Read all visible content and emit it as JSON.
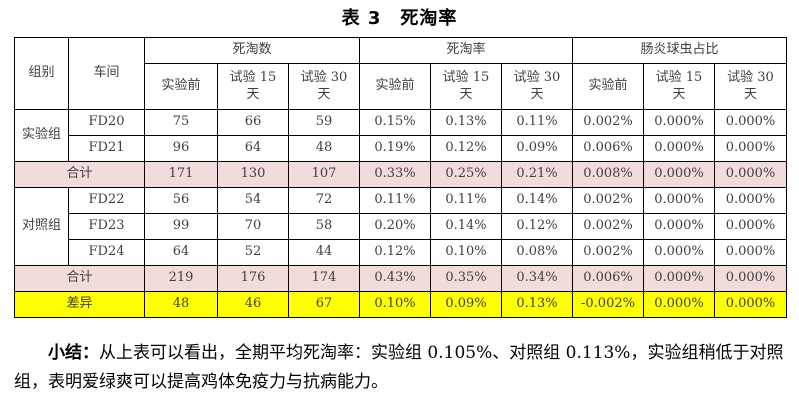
{
  "title": "表 3　死淘率",
  "colors": {
    "subtotal_row_bg": "#f2dcdb",
    "diff_row_bg": "#ffff00",
    "table_border": "#000000",
    "table_text": "#3f3f3f",
    "title_text": "#000000"
  },
  "table": {
    "header": {
      "col_group": "组别",
      "col_workshop": "车间",
      "groups": [
        "死淘数",
        "死淘率",
        "肠炎球虫占比"
      ],
      "sub_columns": [
        "实验前",
        "试验 15\n天",
        "试验 30\n天"
      ]
    },
    "rows": [
      {
        "type": "data",
        "group": "实验组",
        "group_rowspan": 2,
        "workshop": "FD20",
        "values": [
          "75",
          "66",
          "59",
          "0.15%",
          "0.13%",
          "0.11%",
          "0.002%",
          "0.000%",
          "0.000%"
        ]
      },
      {
        "type": "data",
        "workshop": "FD21",
        "values": [
          "96",
          "64",
          "48",
          "0.19%",
          "0.12%",
          "0.09%",
          "0.006%",
          "0.000%",
          "0.000%"
        ]
      },
      {
        "type": "total",
        "label": "合计",
        "values": [
          "171",
          "130",
          "107",
          "0.33%",
          "0.25%",
          "0.21%",
          "0.008%",
          "0.000%",
          "0.000%"
        ]
      },
      {
        "type": "data",
        "group": "对照组",
        "group_rowspan": 3,
        "workshop": "FD22",
        "values": [
          "56",
          "54",
          "72",
          "0.11%",
          "0.11%",
          "0.14%",
          "0.002%",
          "0.000%",
          "0.000%"
        ]
      },
      {
        "type": "data",
        "workshop": "FD23",
        "values": [
          "99",
          "70",
          "58",
          "0.20%",
          "0.14%",
          "0.12%",
          "0.002%",
          "0.000%",
          "0.000%"
        ]
      },
      {
        "type": "data",
        "workshop": "FD24",
        "values": [
          "64",
          "52",
          "44",
          "0.12%",
          "0.10%",
          "0.08%",
          "0.002%",
          "0.000%",
          "0.000%"
        ]
      },
      {
        "type": "total",
        "label": "合计",
        "values": [
          "219",
          "176",
          "174",
          "0.43%",
          "0.35%",
          "0.34%",
          "0.006%",
          "0.000%",
          "0.000%"
        ]
      },
      {
        "type": "diff",
        "label": "差异",
        "values": [
          "48",
          "46",
          "67",
          "0.10%",
          "0.09%",
          "0.13%",
          "-0.002%",
          "0.000%",
          "0.000%"
        ]
      }
    ]
  },
  "summary": {
    "label": "小结：",
    "text": "从上表可以看出，全期平均死淘率：实验组 0.105%、对照组 0.113%，实验组稍低于对照组，表明爱绿爽可以提高鸡体免疫力与抗病能力。"
  }
}
